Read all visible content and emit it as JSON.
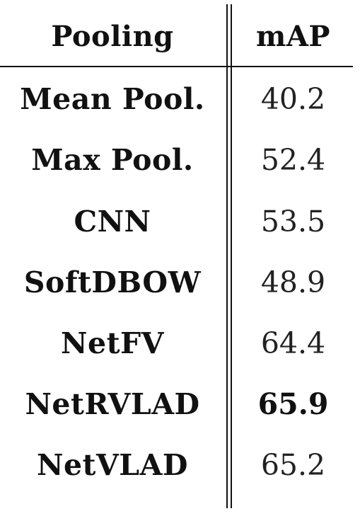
{
  "table": {
    "headers": [
      "Pooling",
      "mAP"
    ],
    "rows": [
      {
        "method": "Mean Pool.",
        "map": "40.2",
        "best": false
      },
      {
        "method": "Max Pool.",
        "map": "52.4",
        "best": false
      },
      {
        "method": "CNN",
        "map": "53.5",
        "best": false
      },
      {
        "method": "SoftDBOW",
        "map": "48.9",
        "best": false
      },
      {
        "method": "NetFV",
        "map": "64.4",
        "best": false
      },
      {
        "method": "NetRVLAD",
        "map": "65.9",
        "best": true
      },
      {
        "method": "NetVLAD",
        "map": "65.2",
        "best": false
      }
    ]
  }
}
